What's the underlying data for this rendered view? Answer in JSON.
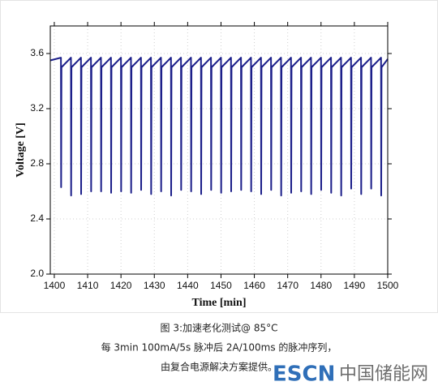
{
  "chart_data": {
    "type": "line",
    "x_label": "Time [min]",
    "y_label": "Voltage [V]",
    "xlim": [
      1398.8,
      1500
    ],
    "xticks": [
      1400,
      1410,
      1420,
      1430,
      1440,
      1450,
      1460,
      1470,
      1480,
      1490,
      1500
    ],
    "ylim": [
      2.0,
      3.8
    ],
    "yticks": [
      {
        "value": 2.0,
        "label": "2.0"
      },
      2.4,
      2.8,
      3.2,
      3.6
    ],
    "grid": true,
    "color": "#1c1f8a",
    "x": [
      1398.8,
      1402,
      1402.05,
      1402.15,
      1405,
      1405.05,
      1405.15,
      1408,
      1408.05,
      1408.15,
      1411,
      1411.05,
      1411.15,
      1414,
      1414.05,
      1414.15,
      1417,
      1417.05,
      1417.15,
      1420,
      1420.05,
      1420.15,
      1423,
      1423.05,
      1423.15,
      1426,
      1426.05,
      1426.15,
      1429,
      1429.05,
      1429.15,
      1432,
      1432.05,
      1432.15,
      1435,
      1435.05,
      1435.15,
      1438,
      1438.05,
      1438.15,
      1441,
      1441.05,
      1441.15,
      1444,
      1444.05,
      1444.15,
      1447,
      1447.05,
      1447.15,
      1450,
      1450.05,
      1450.15,
      1453,
      1453.05,
      1453.15,
      1456,
      1456.05,
      1456.15,
      1459,
      1459.05,
      1459.15,
      1462,
      1462.05,
      1462.15,
      1465,
      1465.05,
      1465.15,
      1468,
      1468.05,
      1468.15,
      1471,
      1471.05,
      1471.15,
      1474,
      1474.05,
      1474.15,
      1477,
      1477.05,
      1477.15,
      1480,
      1480.05,
      1480.15,
      1483,
      1483.05,
      1483.15,
      1486,
      1486.05,
      1486.15,
      1489,
      1489.05,
      1489.15,
      1492,
      1492.05,
      1492.15,
      1495,
      1495.05,
      1495.15,
      1498,
      1498.05,
      1498.15,
      1500
    ],
    "values": [
      3.55,
      3.57,
      2.63,
      3.5,
      3.57,
      2.57,
      3.5,
      3.57,
      2.58,
      3.5,
      3.57,
      2.6,
      3.5,
      3.57,
      2.6,
      3.5,
      3.57,
      2.59,
      3.5,
      3.57,
      2.6,
      3.5,
      3.57,
      2.59,
      3.5,
      3.57,
      2.61,
      3.5,
      3.57,
      2.58,
      3.5,
      3.57,
      2.6,
      3.5,
      3.57,
      2.57,
      3.5,
      3.57,
      2.61,
      3.5,
      3.57,
      2.6,
      3.5,
      3.57,
      2.58,
      3.5,
      3.57,
      2.61,
      3.5,
      3.57,
      2.59,
      3.5,
      3.57,
      2.6,
      3.5,
      3.57,
      2.61,
      3.5,
      3.57,
      2.6,
      3.5,
      3.57,
      2.58,
      3.5,
      3.57,
      2.61,
      3.5,
      3.57,
      2.57,
      3.5,
      3.57,
      2.59,
      3.5,
      3.57,
      2.6,
      3.5,
      3.57,
      2.58,
      3.5,
      3.57,
      2.61,
      3.5,
      3.57,
      2.59,
      3.5,
      3.57,
      2.57,
      3.5,
      3.57,
      2.62,
      3.5,
      3.57,
      2.58,
      3.5,
      3.57,
      2.62,
      3.5,
      3.57,
      2.57,
      3.5,
      3.56
    ]
  },
  "caption": [
    "图 3:加速老化测试@ 85°C",
    "每 3min 100mA/5s 脉冲后 2A/100ms 的脉冲序列，",
    "由复合电源解决方案提供。"
  ],
  "watermark": {
    "brand": "ESCN",
    "site": "中国储能网"
  }
}
